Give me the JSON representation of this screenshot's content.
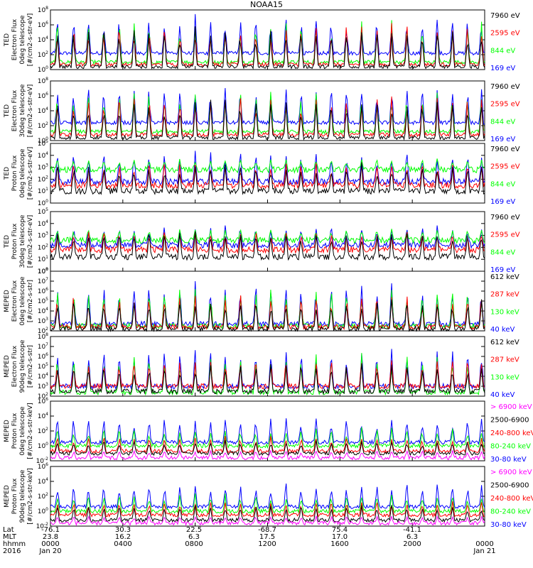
{
  "title": "NOAA15",
  "colors": {
    "black": "#000000",
    "red": "#ff0000",
    "green": "#00ff00",
    "blue": "#0000ff",
    "magenta": "#ff00ff"
  },
  "chart_data": [
    {
      "type": "line",
      "ylabel": [
        "TED",
        "Electron Flux",
        "0deg telescope",
        "[#/cm2-s-str-eV]"
      ],
      "y_scale": "log",
      "ytick_exponents": [
        0,
        2,
        4,
        6,
        8
      ],
      "ylim": [
        1,
        100000000
      ],
      "series": [
        {
          "name": "7960 eV",
          "color": "#000000",
          "baseline_log": 0.4,
          "peak_log": 6.0
        },
        {
          "name": "2595 eV",
          "color": "#ff0000",
          "baseline_log": 0.7,
          "peak_log": 6.5
        },
        {
          "name": "844 eV",
          "color": "#00ff00",
          "baseline_log": 1.0,
          "peak_log": 7.0
        },
        {
          "name": "169 eV",
          "color": "#0000ff",
          "baseline_log": 2.2,
          "peak_log": 7.5
        }
      ]
    },
    {
      "type": "line",
      "ylabel": [
        "TED",
        "Electron Flux",
        "30deg telescope",
        "[#/cm2-s-str-eV]"
      ],
      "y_scale": "log",
      "ytick_exponents": [
        0,
        2,
        4,
        6,
        8
      ],
      "ylim": [
        1,
        100000000
      ],
      "series": [
        {
          "name": "7960 eV",
          "color": "#000000",
          "baseline_log": 0.4,
          "peak_log": 6.0
        },
        {
          "name": "2595 eV",
          "color": "#ff0000",
          "baseline_log": 0.8,
          "peak_log": 6.5
        },
        {
          "name": "844 eV",
          "color": "#00ff00",
          "baseline_log": 1.2,
          "peak_log": 7.0
        },
        {
          "name": "169 eV",
          "color": "#0000ff",
          "baseline_log": 2.4,
          "peak_log": 7.5
        }
      ]
    },
    {
      "type": "line",
      "ylabel": [
        "TED",
        "Proton Flux",
        "0deg telescope",
        "[#/cm2-s-str-eV]"
      ],
      "y_scale": "log",
      "ytick_exponents": [
        0,
        1,
        2,
        3,
        4,
        5
      ],
      "ylim": [
        1,
        100000
      ],
      "series": [
        {
          "name": "7960 eV",
          "color": "#000000",
          "baseline_log": 1.0,
          "peak_log": 3.5
        },
        {
          "name": "2595 eV",
          "color": "#ff0000",
          "baseline_log": 1.5,
          "peak_log": 3.5
        },
        {
          "name": "844 eV",
          "color": "#00ff00",
          "baseline_log": 2.8,
          "peak_log": 3.8
        },
        {
          "name": "169 eV",
          "color": "#0000ff",
          "baseline_log": 1.8,
          "peak_log": 4.5
        }
      ]
    },
    {
      "type": "line",
      "ylabel": [
        "TED",
        "Proton Flux",
        "30deg telescope",
        "[#/cm2-s-str-eV]"
      ],
      "y_scale": "log",
      "ytick_exponents": [
        0,
        1,
        2,
        3,
        4,
        5
      ],
      "ylim": [
        1,
        100000
      ],
      "series": [
        {
          "name": "7960 eV",
          "color": "#000000",
          "baseline_log": 1.2,
          "peak_log": 3.5
        },
        {
          "name": "2595 eV",
          "color": "#ff0000",
          "baseline_log": 1.8,
          "peak_log": 3.5
        },
        {
          "name": "844 eV",
          "color": "#00ff00",
          "baseline_log": 2.6,
          "peak_log": 3.6
        },
        {
          "name": "169 eV",
          "color": "#0000ff",
          "baseline_log": 2.2,
          "peak_log": 4.0
        }
      ]
    },
    {
      "type": "line",
      "ylabel": [
        "MEPED",
        "Electron Flux",
        "0deg telescope",
        "[#/cm2-s-str]"
      ],
      "y_scale": "log",
      "ytick_exponents": [
        2,
        3,
        4,
        5,
        6,
        7,
        8
      ],
      "ylim": [
        100,
        100000000
      ],
      "series": [
        {
          "name": "612 keV",
          "color": "#000000",
          "baseline_log": 2.2,
          "peak_log": 5.5
        },
        {
          "name": "287 keV",
          "color": "#ff0000",
          "baseline_log": 2.4,
          "peak_log": 6.0
        },
        {
          "name": "130 keV",
          "color": "#00ff00",
          "baseline_log": 2.5,
          "peak_log": 6.5
        },
        {
          "name": "40 keV",
          "color": "#0000ff",
          "baseline_log": 2.7,
          "peak_log": 7.0
        }
      ]
    },
    {
      "type": "line",
      "ylabel": [
        "MEPED",
        "Electron Flux",
        "90deg telescope",
        "[#/cm2-s-str]"
      ],
      "y_scale": "log",
      "ytick_exponents": [
        2,
        3,
        4,
        5,
        6,
        7,
        8
      ],
      "ylim": [
        100,
        100000000
      ],
      "series": [
        {
          "name": "612 keV",
          "color": "#000000",
          "baseline_log": 2.5,
          "peak_log": 5.5
        },
        {
          "name": "287 keV",
          "color": "#ff0000",
          "baseline_log": 3.0,
          "peak_log": 6.0
        },
        {
          "name": "130 keV",
          "color": "#00ff00",
          "baseline_log": 2.4,
          "peak_log": 6.5
        },
        {
          "name": "40 keV",
          "color": "#0000ff",
          "baseline_log": 3.0,
          "peak_log": 7.0
        }
      ]
    },
    {
      "type": "line",
      "ylabel": [
        "MEPED",
        "Proton Flux",
        "0deg telescope",
        "[#/cm2-s-str-keV]"
      ],
      "y_scale": "log",
      "ytick_exponents": [
        -2,
        0,
        2,
        4,
        6
      ],
      "ylim": [
        0.01,
        1000000
      ],
      "series": [
        {
          "name": "> 6900 keV",
          "color": "#ff00ff",
          "baseline_log": -1.6,
          "peak_log": -0.5
        },
        {
          "name": "2500-6900",
          "color": "#000000",
          "baseline_log": -1.0,
          "peak_log": 1.0
        },
        {
          "name": "240-800 keV",
          "color": "#ff0000",
          "baseline_log": -0.7,
          "peak_log": 1.5
        },
        {
          "name": "80-240 keV",
          "color": "#00ff00",
          "baseline_log": 0.0,
          "peak_log": 2.5
        },
        {
          "name": "30-80 keV",
          "color": "#0000ff",
          "baseline_log": 0.5,
          "peak_log": 4.0
        }
      ]
    },
    {
      "type": "line",
      "ylabel": [
        "MEPED",
        "Proton Flux",
        "90deg telescope",
        "[#/cm2-s-str-keV]"
      ],
      "y_scale": "log",
      "ytick_exponents": [
        -2,
        0,
        2,
        4,
        6
      ],
      "ylim": [
        0.01,
        1000000
      ],
      "series": [
        {
          "name": "> 6900 keV",
          "color": "#ff00ff",
          "baseline_log": -1.6,
          "peak_log": -0.5
        },
        {
          "name": "2500-6900",
          "color": "#000000",
          "baseline_log": -1.2,
          "peak_log": 1.0
        },
        {
          "name": "240-800 keV",
          "color": "#ff0000",
          "baseline_log": -0.5,
          "peak_log": 1.5
        },
        {
          "name": "80-240 keV",
          "color": "#00ff00",
          "baseline_log": 0.0,
          "peak_log": 2.5
        },
        {
          "name": "30-80 keV",
          "color": "#0000ff",
          "baseline_log": 0.6,
          "peak_log": 4.0
        }
      ]
    }
  ],
  "x_axis": {
    "row_labels": [
      "Lat",
      "MLT",
      "hhmm",
      "2016"
    ],
    "columns": [
      {
        "hour": 0,
        "lat": "-76.1",
        "mlt": "23.8",
        "hhmm": "0000",
        "date": "Jan 20"
      },
      {
        "hour": 4,
        "lat": "30.3",
        "mlt": "16.2",
        "hhmm": "0400",
        "date": ""
      },
      {
        "hour": 8,
        "lat": "22.5",
        "mlt": "6.3",
        "hhmm": "0800",
        "date": ""
      },
      {
        "hour": 12,
        "lat": "-68.7",
        "mlt": "17.5",
        "hhmm": "1200",
        "date": ""
      },
      {
        "hour": 16,
        "lat": "75.4",
        "mlt": "17.0",
        "hhmm": "1600",
        "date": ""
      },
      {
        "hour": 20,
        "lat": "-41.1",
        "mlt": "6.3",
        "hhmm": "2000",
        "date": ""
      },
      {
        "hour": 24,
        "lat": "",
        "mlt": "",
        "hhmm": "0000",
        "date": "Jan 21"
      }
    ],
    "xlim_hours": [
      0,
      24
    ]
  },
  "orbit": {
    "passes_per_day": 28,
    "peak_hours": [
      0.38,
      1.28,
      2.1,
      2.95,
      3.8,
      4.62,
      5.45,
      6.3,
      7.15,
      8.0,
      8.85,
      9.66,
      10.5,
      11.35,
      12.18,
      13.02,
      13.85,
      14.68,
      15.52,
      16.36,
      17.2,
      18.04,
      18.86,
      19.7,
      20.55,
      21.38,
      22.22,
      23.05,
      23.82
    ]
  }
}
